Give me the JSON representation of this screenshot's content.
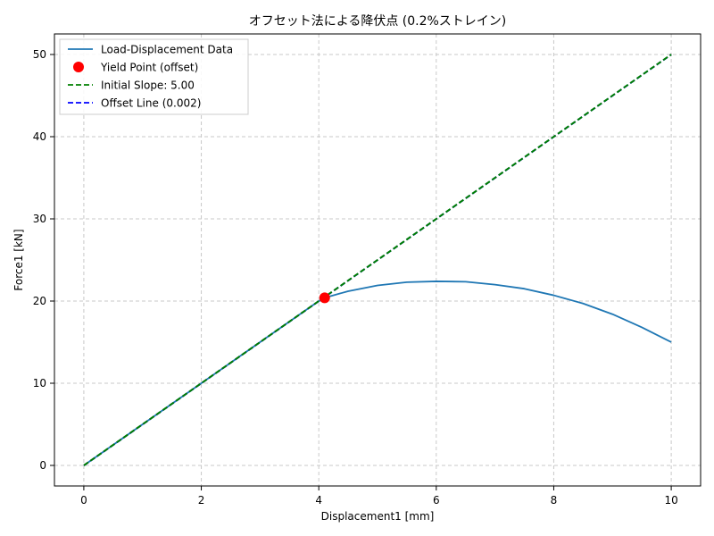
{
  "chart_data": {
    "type": "line",
    "title": "オフセット法による降伏点 (0.2%ストレイン)",
    "xlabel": "Displacement1 [mm]",
    "ylabel": "Force1 [kN]",
    "xlim": [
      -0.5,
      10.5
    ],
    "ylim": [
      -2.5,
      52.5
    ],
    "xticks": [
      0,
      2,
      4,
      6,
      8,
      10
    ],
    "yticks": [
      0,
      10,
      20,
      30,
      40,
      50
    ],
    "grid": true,
    "legend_position": "top-left",
    "series": [
      {
        "name": "Load-Displacement Data",
        "kind": "line",
        "color": "#1f77b4",
        "style": "solid",
        "x": [
          0,
          1,
          2,
          3,
          4,
          4.2,
          4.5,
          5,
          5.5,
          6,
          6.5,
          7,
          7.5,
          8,
          8.5,
          9,
          9.5,
          10
        ],
        "y": [
          0,
          5,
          10,
          15,
          20,
          20.6,
          21.2,
          21.9,
          22.3,
          22.4,
          22.35,
          22.0,
          21.5,
          20.7,
          19.7,
          18.4,
          16.8,
          15.0
        ]
      },
      {
        "name": "Yield Point (offset)",
        "kind": "point",
        "color": "#ff0000",
        "x": [
          4.1
        ],
        "y": [
          20.4
        ]
      },
      {
        "name": "Initial Slope: 5.00",
        "kind": "line",
        "color": "#008000",
        "style": "dashed",
        "x": [
          0,
          10
        ],
        "y": [
          0,
          50
        ]
      },
      {
        "name": "Offset Line (0.002)",
        "kind": "line",
        "color": "#0000ff",
        "style": "dashed",
        "x": [
          0,
          10
        ],
        "y": [
          -0.01,
          49.99
        ]
      }
    ]
  }
}
